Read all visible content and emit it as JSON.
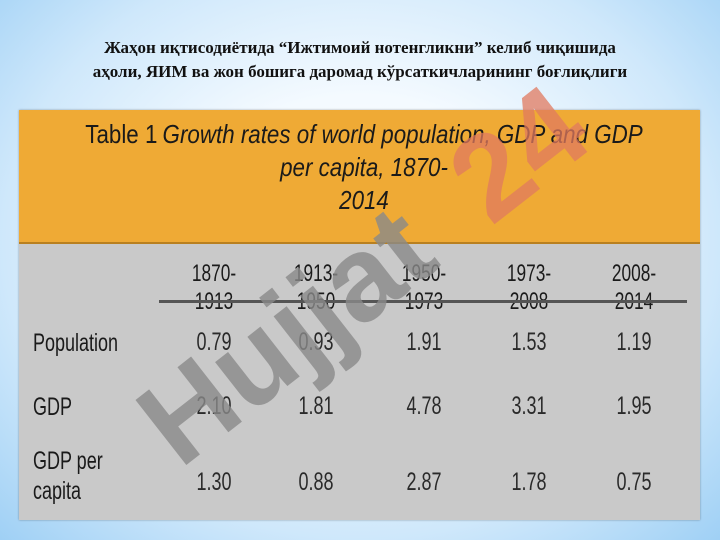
{
  "slide": {
    "title_line1": "Жаҳон иқтисодиётида “Ижтимоий нотенгликни” келиб чиқишида",
    "title_line2": "аҳоли, ЯИМ ва жон бошига даромад кўрсаткичларининг боғлиқлиги"
  },
  "table": {
    "caption_label": "Table 1",
    "caption_line1": "Growth rates of world population, GDP and GDP per capita, 1870-",
    "caption_line2": "2014",
    "columns": [
      "1870-1913",
      "1913-1950",
      "1950-1973",
      "1973-2008",
      "2008-2014"
    ],
    "rows": [
      {
        "label_line1": "Population",
        "label_line2": "",
        "values": [
          "0.79",
          "0.93",
          "1.91",
          "1.53",
          "1.19"
        ]
      },
      {
        "label_line1": "GDP",
        "label_line2": "",
        "values": [
          "2.10",
          "1.81",
          "4.78",
          "3.31",
          "1.95"
        ]
      },
      {
        "label_line1": "GDP per",
        "label_line2": "capita",
        "values": [
          "1.30",
          "0.88",
          "2.87",
          "1.78",
          "0.75"
        ]
      }
    ]
  },
  "watermark": {
    "text": "Hujjat24",
    "colors": {
      "main": "#8a8a8a",
      "accent": "#e07a5f"
    }
  }
}
